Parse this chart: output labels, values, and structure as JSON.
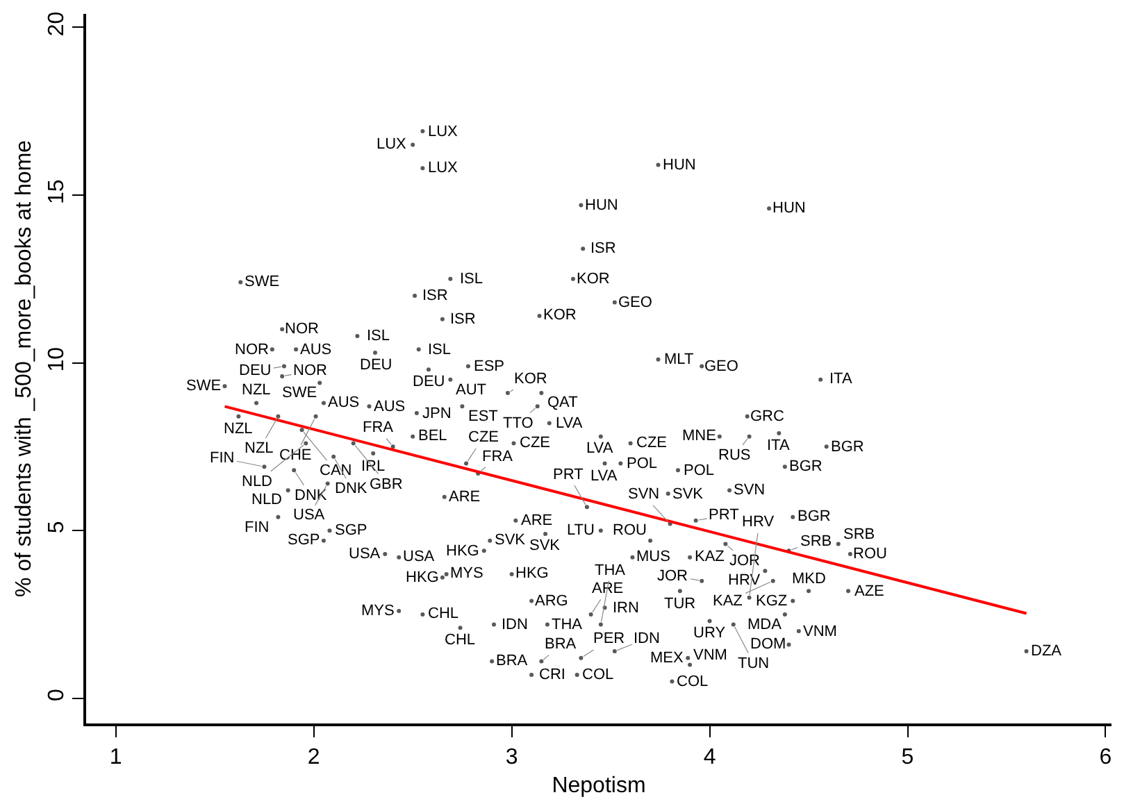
{
  "chart_data": {
    "type": "scatter",
    "xlabel": "Nepotism",
    "ylabel": "% of students with _500_more_books at home",
    "xlim": [
      0.85,
      6.03
    ],
    "xticks": [
      1,
      2,
      3,
      4,
      5,
      6
    ],
    "ylim": [
      -0.75,
      20.4
    ],
    "yticks": [
      0,
      5,
      10,
      15,
      20
    ],
    "grid": false,
    "marker": "circle",
    "series": [
      {
        "color": "#595959",
        "x": [
          2.55,
          2.5,
          2.55,
          3.74,
          3.35,
          4.3,
          3.36,
          3.31,
          3.52,
          3.14,
          2.65,
          2.51,
          2.69,
          1.63,
          1.84,
          2.22,
          1.79,
          1.91,
          2.31,
          2.53,
          1.85,
          1.84,
          2.58,
          2.78,
          2.69,
          1.55,
          2.03,
          1.71,
          1.62,
          1.82,
          2.05,
          2.01,
          2.52,
          2.28,
          2.75,
          2.98,
          3.15,
          3.13,
          3.19,
          3.01,
          1.94,
          1.96,
          2.5,
          2.1,
          2.3,
          2.4,
          2.2,
          1.75,
          1.9,
          1.87,
          2.07,
          2.83,
          2.77,
          2.66,
          1.82,
          2.08,
          2.05,
          2.36,
          2.43,
          2.67,
          2.65,
          2.89,
          2.86,
          3.0,
          3.02,
          3.17,
          2.43,
          2.55,
          2.74,
          2.91,
          3.18,
          3.1,
          2.9,
          3.1,
          3.33,
          3.81,
          3.89,
          3.9,
          3.15,
          3.35,
          3.52,
          4.56,
          3.74,
          3.96,
          4.19,
          4.35,
          4.59,
          4.38,
          4.1,
          3.79,
          3.84,
          4.05,
          4.2,
          3.45,
          3.6,
          3.55,
          3.47,
          3.61,
          3.9,
          4.08,
          3.7,
          3.45,
          3.38,
          3.8,
          3.93,
          4.4,
          4.65,
          4.71,
          4.7,
          4.5,
          4.42,
          4.38,
          4.45,
          4.4,
          5.6,
          4.42,
          4.28,
          4.32,
          3.96,
          3.85,
          3.47,
          3.4,
          3.45,
          4.0,
          4.12,
          4.2
        ],
        "values": [
          16.9,
          16.5,
          15.8,
          15.9,
          14.7,
          14.6,
          13.4,
          12.5,
          11.8,
          11.4,
          11.3,
          12.0,
          12.5,
          12.4,
          11.0,
          10.8,
          10.4,
          10.4,
          10.3,
          10.4,
          9.9,
          9.6,
          9.8,
          9.9,
          9.5,
          9.3,
          9.4,
          8.8,
          8.4,
          8.4,
          8.8,
          8.4,
          8.5,
          8.7,
          8.7,
          9.1,
          9.1,
          8.7,
          8.2,
          7.6,
          8.0,
          7.6,
          7.8,
          7.2,
          7.3,
          7.5,
          7.6,
          6.9,
          6.8,
          6.2,
          6.4,
          6.7,
          7.0,
          6.0,
          5.4,
          5.0,
          4.7,
          4.3,
          4.2,
          3.7,
          3.6,
          4.7,
          4.4,
          3.7,
          5.3,
          4.9,
          2.6,
          2.5,
          2.1,
          2.2,
          2.2,
          2.9,
          1.1,
          0.7,
          0.7,
          0.5,
          1.2,
          1.0,
          1.1,
          1.2,
          1.4,
          9.5,
          10.1,
          9.9,
          8.4,
          7.9,
          7.5,
          6.9,
          6.2,
          6.1,
          6.8,
          7.8,
          7.8,
          7.8,
          7.6,
          7.0,
          7.0,
          4.2,
          4.2,
          4.6,
          4.7,
          5.0,
          5.7,
          5.2,
          5.3,
          4.4,
          4.6,
          4.3,
          3.2,
          3.2,
          2.9,
          2.5,
          2.0,
          1.6,
          1.4,
          5.4,
          3.8,
          3.5,
          3.5,
          3.2,
          2.7,
          2.5,
          2.2,
          2.3,
          2.2,
          3.0
        ],
        "value_labels": [
          "LUX",
          "LUX",
          "LUX",
          "HUN",
          "HUN",
          "HUN",
          "ISR",
          "KOR",
          "GEO",
          "KOR",
          "ISR",
          "ISR",
          "ISL",
          "SWE",
          "NOR",
          "ISL",
          "NOR",
          "AUS",
          "DEU",
          "ISL",
          "DEU",
          "NOR",
          "DEU",
          "ESP",
          "AUT",
          "SWE",
          "SWE",
          "NZL",
          "NZL",
          "NZL",
          "AUS",
          "CHE",
          "JPN",
          "AUS",
          "EST",
          "KOR",
          "QAT",
          "TTO",
          "LVA",
          "CZE",
          "CAN",
          "NLD",
          "BEL",
          "DNK",
          "IRL",
          "FRA",
          "GBR",
          "FIN",
          "DNK",
          "NLD",
          "USA",
          "FRA",
          "CZE",
          "ARE",
          "FIN",
          "SGP",
          "SGP",
          "USA",
          "USA",
          "MYS",
          "HKG",
          "SVK",
          "HKG",
          "HKG",
          "ARE",
          "SVK",
          "MYS",
          "CHL",
          "CHL",
          "IDN",
          "THA",
          "ARG",
          "BRA",
          "CRI",
          "COL",
          "COL",
          "MEX",
          "VNM",
          "BRA",
          "PER",
          "IDN",
          "ITA",
          "MLT",
          "GEO",
          "GRC",
          "ITA",
          "BGR",
          "BGR",
          "SVN",
          "SVK",
          "POL",
          "MNE",
          "RUS",
          "LVA",
          "CZE",
          "POL",
          "LVA",
          "MUS",
          "KAZ",
          "JOR",
          "ROU",
          "LTU",
          "PRT",
          "SVN",
          "PRT",
          "SRB",
          "SRB",
          "ROU",
          "AZE",
          "MKD",
          "KGZ",
          "MDA",
          "VNM",
          "DOM",
          "DZA",
          "BGR",
          "HRV",
          "KAZ",
          "JOR",
          "TUR",
          "IRN",
          "ARE",
          "THA",
          "URY",
          "TUN",
          "HRV"
        ]
      },
      {
        "type": "line",
        "marker": "none",
        "color": "#ff0000",
        "x": [
          1.55,
          5.6
        ],
        "values": [
          8.7,
          2.53
        ]
      }
    ]
  }
}
